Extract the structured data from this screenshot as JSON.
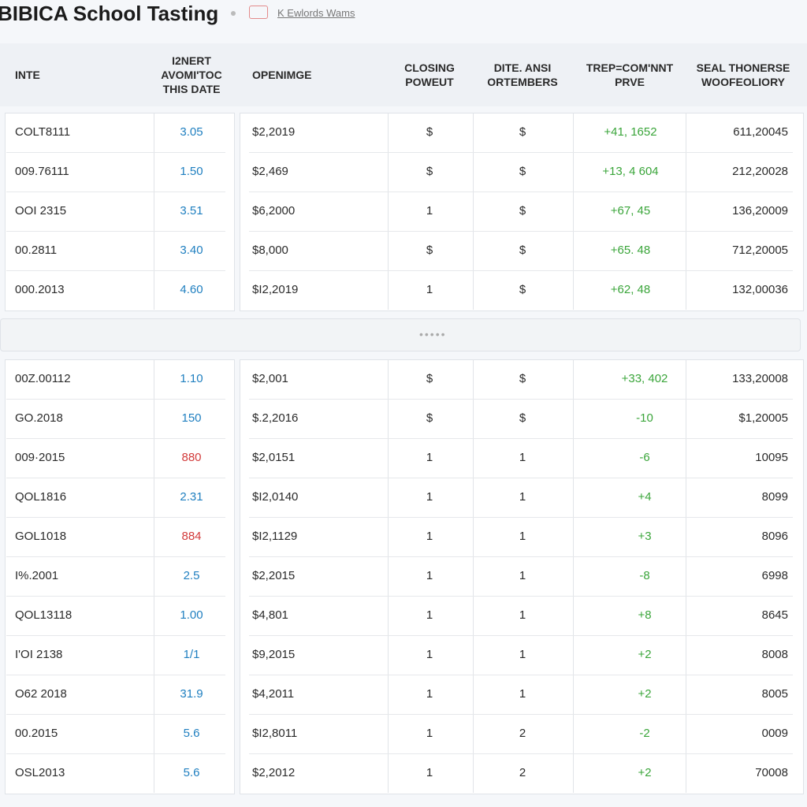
{
  "header": {
    "title": "BIBICA School Tasting",
    "link": "K Ewlords Wams"
  },
  "table": {
    "columns": [
      [
        "INTE"
      ],
      [
        "I2NERT",
        "AVOMI'TOC",
        "THIS DATE"
      ],
      [
        "OPENIMGE"
      ],
      [
        "CLOSING",
        "POWEUT"
      ],
      [
        "DITE. ANSI",
        "ORTEMBERS"
      ],
      [
        "TREP=COM'NNT",
        "PRVE"
      ],
      [
        "SEAL THONERSE",
        "WOOFEOLIORY"
      ]
    ],
    "accent_color": "#1f7fc0",
    "change_color": "#3aa53a",
    "groups": [
      [
        {
          "cells": [
            "COLT8111",
            "3.05",
            "$2,2019",
            "$",
            "$",
            "+41, 1652",
            "611,20045"
          ]
        },
        {
          "cells": [
            "009.76111",
            "1.50",
            "$2,469",
            "$",
            "$",
            "+13, 4 604",
            "212,20028"
          ]
        },
        {
          "cells": [
            "OOI 2315",
            "3.51",
            "$6,2000",
            "1",
            "$",
            "+67, 45",
            "136,20009"
          ]
        },
        {
          "cells": [
            "00.2811",
            "3.40",
            "$8,000",
            "$",
            "$",
            "+65. 48",
            "712,20005"
          ]
        },
        {
          "cells": [
            "000.2013",
            "4.60",
            "$I2,2019",
            "1",
            "$",
            "+62, 48",
            "132,00036"
          ]
        }
      ],
      [
        {
          "cells": [
            "00Z.00112",
            "1.10",
            "$2,001",
            "$",
            "$",
            "+33, 402",
            "133,20008"
          ]
        },
        {
          "cells": [
            "GO.2018",
            "150",
            "$.2,2016",
            "$",
            "$",
            "-10",
            "$1,20005"
          ]
        },
        {
          "cells": [
            "009·2015",
            "880",
            "$2,0151",
            "1",
            "1",
            "-6",
            "10095"
          ],
          "flag_color": "#d23b3b"
        },
        {
          "cells": [
            "QOL1816",
            "2.31",
            "$I2,0140",
            "1",
            "1",
            "+4",
            "8099"
          ]
        },
        {
          "cells": [
            "GOL1018",
            "884",
            "$I2,1129",
            "1",
            "1",
            "+3",
            "8096"
          ],
          "flag_color": "#d23b3b"
        },
        {
          "cells": [
            "I%.2001",
            "2.5",
            "$2,2015",
            "1",
            "1",
            "-8",
            "6998"
          ]
        },
        {
          "cells": [
            "QOL13118",
            "1.00",
            "$4,801",
            "1",
            "1",
            "+8",
            "8645"
          ]
        },
        {
          "cells": [
            "I'OI 2138",
            "1/1",
            "$9,2015",
            "1",
            "1",
            "+2",
            "8008"
          ]
        },
        {
          "cells": [
            "O62 2018",
            "31.9",
            "$4,2011",
            "1",
            "1",
            "+2",
            "8005"
          ]
        },
        {
          "cells": [
            "00.2015",
            "5.6",
            "$I2,8011",
            "1",
            "2",
            "-2",
            "0009"
          ]
        },
        {
          "cells": [
            "OSL2013",
            "5.6",
            "$2,2012",
            "1",
            "2",
            "+2",
            "70008"
          ]
        }
      ]
    ]
  }
}
